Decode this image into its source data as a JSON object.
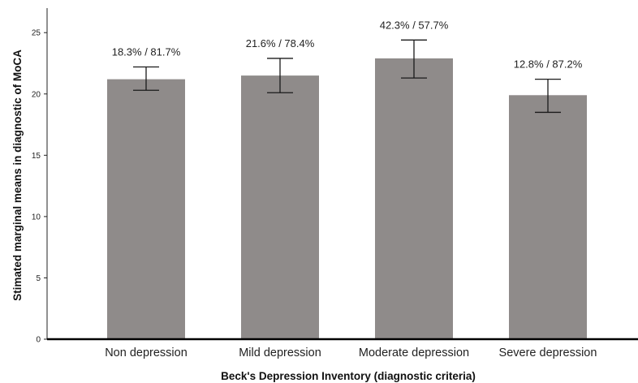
{
  "chart_data": {
    "type": "bar",
    "title": "",
    "xlabel": "Beck's Depression Inventory (diagnostic criteria)",
    "ylabel": "Stimated marginal means in diagnostic of MoCA",
    "ylim": [
      0,
      27
    ],
    "yticks": [
      0,
      5,
      10,
      15,
      20,
      25
    ],
    "categories": [
      "Non depression",
      "Mild depression",
      "Moderate depression",
      "Severe depression"
    ],
    "values": [
      21.2,
      21.5,
      22.9,
      19.9
    ],
    "error_low": [
      20.3,
      20.1,
      21.3,
      18.5
    ],
    "error_high": [
      22.2,
      22.9,
      24.4,
      21.2
    ],
    "data_labels": [
      "18.3% / 81.7%",
      "21.6% / 78.4%",
      "42.3% / 57.7%",
      "12.8% / 87.2%"
    ],
    "bar_color": "#8f8b8a",
    "grid": false,
    "legend": "none"
  }
}
